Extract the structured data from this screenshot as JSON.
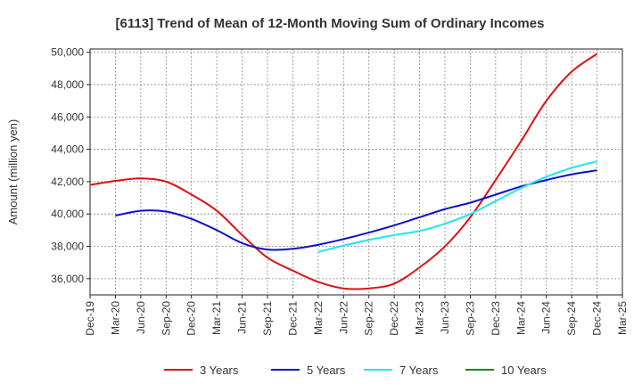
{
  "chart_data": {
    "type": "line",
    "title": "[6113]  Trend of Mean of 12-Month Moving Sum of Ordinary Incomes",
    "xlabel": "",
    "ylabel": "Amount (million yen)",
    "ylim": [
      35000,
      50200
    ],
    "yticks": [
      36000,
      38000,
      40000,
      42000,
      44000,
      46000,
      48000,
      50000
    ],
    "ytick_labels": [
      "36,000",
      "38,000",
      "40,000",
      "42,000",
      "44,000",
      "46,000",
      "48,000",
      "50,000"
    ],
    "categories": [
      "Dec-19",
      "Mar-20",
      "Jun-20",
      "Sep-20",
      "Dec-20",
      "Mar-21",
      "Jun-21",
      "Sep-21",
      "Dec-21",
      "Mar-22",
      "Jun-22",
      "Sep-22",
      "Dec-22",
      "Mar-23",
      "Jun-23",
      "Sep-23",
      "Dec-23",
      "Mar-24",
      "Jun-24",
      "Sep-24",
      "Dec-24",
      "Mar-25"
    ],
    "grid": true,
    "legend_position": "bottom",
    "series": [
      {
        "name": "3 Years",
        "color": "#dd1111",
        "values": [
          41800,
          42050,
          42200,
          42000,
          41200,
          40200,
          38700,
          37300,
          36500,
          35800,
          35400,
          35400,
          35700,
          36700,
          38000,
          39800,
          42100,
          44500,
          47000,
          48800,
          49900,
          null
        ]
      },
      {
        "name": "5 Years",
        "color": "#0a12c8",
        "values": [
          null,
          39900,
          40200,
          40150,
          39700,
          39000,
          38200,
          37800,
          37850,
          38100,
          38450,
          38850,
          39300,
          39800,
          40300,
          40700,
          41200,
          41700,
          42100,
          42450,
          42700,
          null
        ]
      },
      {
        "name": "7 Years",
        "color": "#22e6ee",
        "values": [
          null,
          null,
          null,
          null,
          null,
          null,
          null,
          null,
          null,
          37650,
          38050,
          38400,
          38700,
          38950,
          39400,
          40000,
          40800,
          41600,
          42300,
          42850,
          43250,
          null
        ]
      },
      {
        "name": "10 Years",
        "color": "#1a8a1a",
        "values": [
          null,
          null,
          null,
          null,
          null,
          null,
          null,
          null,
          null,
          null,
          null,
          null,
          null,
          null,
          null,
          null,
          null,
          null,
          null,
          null,
          null,
          null
        ]
      }
    ]
  }
}
